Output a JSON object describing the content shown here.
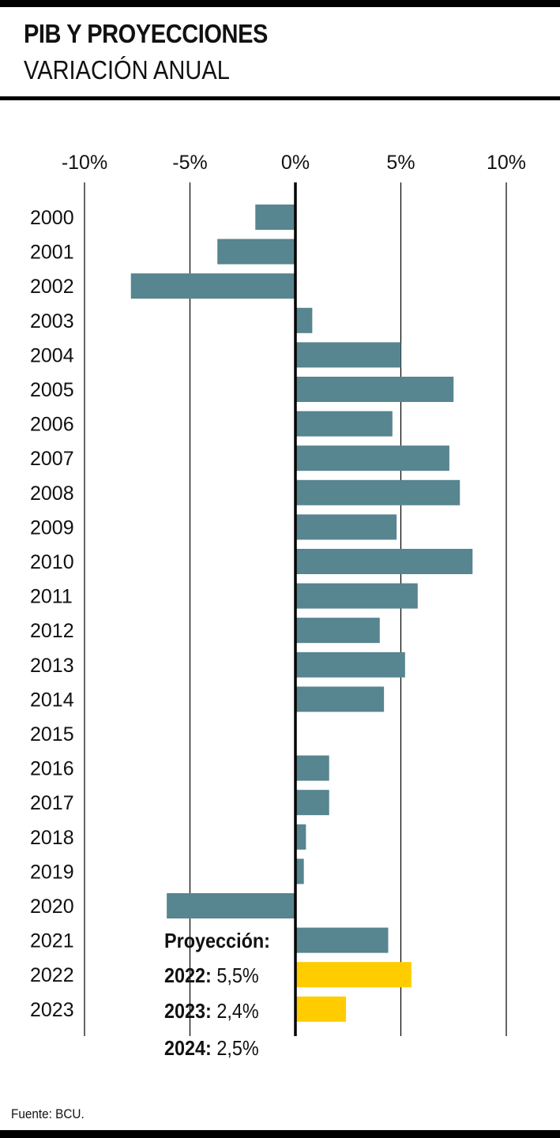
{
  "header": {
    "title": "PIB Y PROYECCIONES",
    "subtitle": "VARIACIÓN ANUAL"
  },
  "source": "Fuente: BCU.",
  "projection": {
    "heading": "Proyección:",
    "items": [
      {
        "year": "2022:",
        "value": "5,5%"
      },
      {
        "year": "2023:",
        "value": "2,4%"
      },
      {
        "year": "2024:",
        "value": "2,5%"
      }
    ]
  },
  "colors": {
    "actual": "#578590",
    "projection": "#FFCC00",
    "grid": "#000000"
  },
  "chart_data": {
    "type": "bar",
    "orientation": "horizontal",
    "title": "PIB Y PROYECCIONES",
    "subtitle": "VARIACIÓN ANUAL",
    "xlim": [
      -10,
      10
    ],
    "ticks": [
      -10,
      -5,
      0,
      5,
      10
    ],
    "tick_labels": [
      "-10%",
      "-5%",
      "0%",
      "5%",
      "10%"
    ],
    "grid": true,
    "categories": [
      "2000",
      "2001",
      "2002",
      "2003",
      "2004",
      "2005",
      "2006",
      "2007",
      "2008",
      "2009",
      "2010",
      "2011",
      "2012",
      "2013",
      "2014",
      "2015",
      "2016",
      "2017",
      "2018",
      "2019",
      "2020",
      "2021",
      "2022",
      "2023"
    ],
    "values": [
      -1.9,
      -3.7,
      -7.8,
      0.8,
      5.0,
      7.5,
      4.6,
      7.3,
      7.8,
      4.8,
      8.4,
      5.8,
      4.0,
      5.2,
      4.2,
      0.0,
      1.6,
      1.6,
      0.5,
      0.4,
      -6.1,
      4.4,
      5.5,
      2.4
    ],
    "projection_flags": [
      false,
      false,
      false,
      false,
      false,
      false,
      false,
      false,
      false,
      false,
      false,
      false,
      false,
      false,
      false,
      false,
      false,
      false,
      false,
      false,
      false,
      false,
      true,
      true
    ]
  }
}
